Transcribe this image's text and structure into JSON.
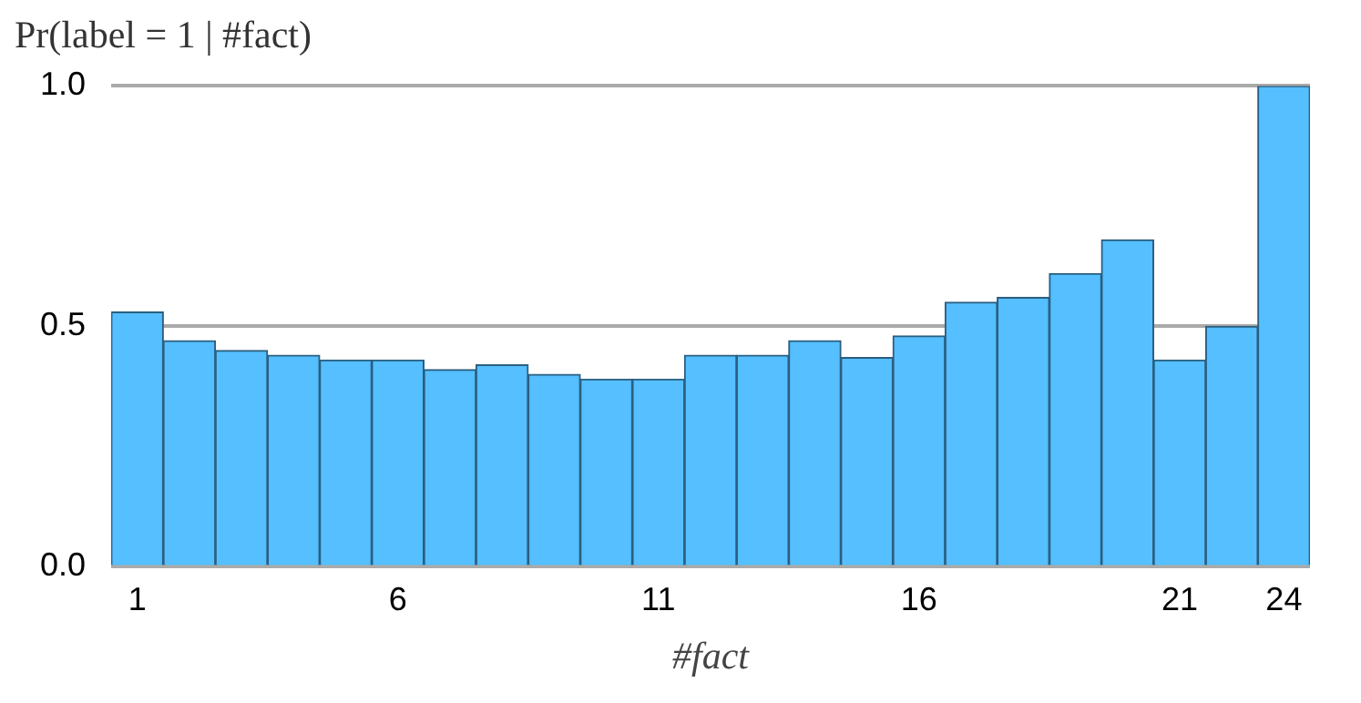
{
  "chart_data": {
    "type": "bar",
    "title": "Pr(label = 1 | #fact)",
    "xlabel": "#fact",
    "categories": [
      "1",
      null,
      null,
      null,
      null,
      "6",
      null,
      null,
      null,
      null,
      "11",
      null,
      null,
      null,
      null,
      "16",
      null,
      null,
      null,
      null,
      "21",
      null,
      "24"
    ],
    "values": [
      0.53,
      0.47,
      0.45,
      0.44,
      0.43,
      0.43,
      0.41,
      0.42,
      0.4,
      0.39,
      0.39,
      0.44,
      0.44,
      0.47,
      0.435,
      0.48,
      0.55,
      0.56,
      0.61,
      0.68,
      0.43,
      0.5,
      1.0
    ],
    "color": "#55bfff",
    "ylim": [
      0,
      1
    ],
    "yticks": [
      {
        "value": 0,
        "label": "0.0"
      },
      {
        "value": 0.5,
        "label": "0.5"
      },
      {
        "value": 1,
        "label": "1.0"
      }
    ],
    "grid": "y"
  }
}
